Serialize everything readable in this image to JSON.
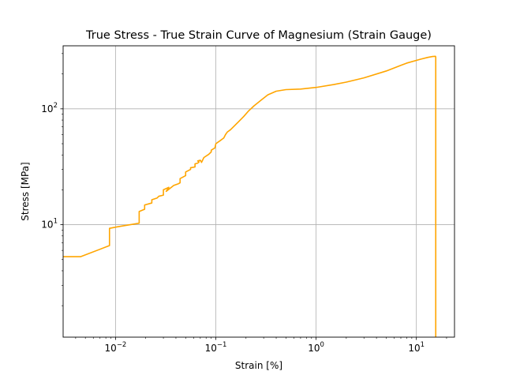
{
  "chart_data": {
    "type": "line",
    "title": "True Stress - True Strain Curve of Magnesium (Strain Gauge)",
    "xlabel": "Strain [%]",
    "ylabel": "Stress [MPa]",
    "xscale": "log",
    "yscale": "log",
    "xlim": [
      0.003,
      24
    ],
    "ylim": [
      1.07,
      350
    ],
    "grid": true,
    "x_ticks": [
      {
        "value": 0.01,
        "base": "10",
        "exp": "−2"
      },
      {
        "value": 0.1,
        "base": "10",
        "exp": "−1"
      },
      {
        "value": 1,
        "base": "10",
        "exp": "0"
      },
      {
        "value": 10,
        "base": "10",
        "exp": "1"
      }
    ],
    "y_ticks": [
      {
        "value": 10,
        "base": "10",
        "exp": "1"
      },
      {
        "value": 100,
        "base": "10",
        "exp": "2"
      }
    ],
    "series": [
      {
        "color": "#ffa500",
        "points": [
          [
            0.003,
            5.3
          ],
          [
            0.0045,
            5.3
          ],
          [
            0.0087,
            6.6
          ],
          [
            0.0087,
            9.3
          ],
          [
            0.0105,
            9.6
          ],
          [
            0.0172,
            10.3
          ],
          [
            0.0172,
            13.0
          ],
          [
            0.0195,
            13.6
          ],
          [
            0.0195,
            14.8
          ],
          [
            0.023,
            15.4
          ],
          [
            0.023,
            16.4
          ],
          [
            0.026,
            17.0
          ],
          [
            0.027,
            17.6
          ],
          [
            0.03,
            18.0
          ],
          [
            0.03,
            20.0
          ],
          [
            0.034,
            21.0
          ],
          [
            0.032,
            19.4
          ],
          [
            0.038,
            21.8
          ],
          [
            0.042,
            22.5
          ],
          [
            0.044,
            23.0
          ],
          [
            0.044,
            25.0
          ],
          [
            0.05,
            26.5
          ],
          [
            0.05,
            28.5
          ],
          [
            0.056,
            30.0
          ],
          [
            0.056,
            31.0
          ],
          [
            0.062,
            31.5
          ],
          [
            0.062,
            33.5
          ],
          [
            0.066,
            34.0
          ],
          [
            0.068,
            34.8
          ],
          [
            0.066,
            35.5
          ],
          [
            0.07,
            36.0
          ],
          [
            0.072,
            34.5
          ],
          [
            0.076,
            38.0
          ],
          [
            0.085,
            40.5
          ],
          [
            0.09,
            42.5
          ],
          [
            0.09,
            44.0
          ],
          [
            0.098,
            46.0
          ],
          [
            0.1,
            50.0
          ],
          [
            0.11,
            53.0
          ],
          [
            0.12,
            56.0
          ],
          [
            0.125,
            60.0
          ],
          [
            0.13,
            63.0
          ],
          [
            0.14,
            66.0
          ],
          [
            0.15,
            70.0
          ],
          [
            0.17,
            78.0
          ],
          [
            0.19,
            86.0
          ],
          [
            0.21,
            95.0
          ],
          [
            0.24,
            106.0
          ],
          [
            0.28,
            118.0
          ],
          [
            0.33,
            132.0
          ],
          [
            0.4,
            142.0
          ],
          [
            0.5,
            146.5
          ],
          [
            0.7,
            148.0
          ],
          [
            1.0,
            153.0
          ],
          [
            1.5,
            162.0
          ],
          [
            2.0,
            170.0
          ],
          [
            3.0,
            185.0
          ],
          [
            5.0,
            212.0
          ],
          [
            8.0,
            248.0
          ],
          [
            11.0,
            268.0
          ],
          [
            13.0,
            278.0
          ],
          [
            14.5,
            283.0
          ],
          [
            15.5,
            284.0
          ],
          [
            15.6,
            280.0
          ],
          [
            15.6,
            1.07
          ]
        ]
      }
    ]
  }
}
